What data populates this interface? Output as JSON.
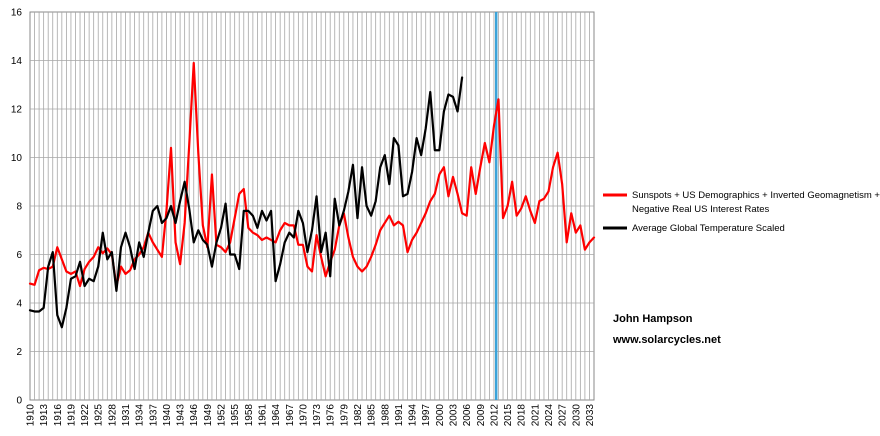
{
  "chart_data": {
    "type": "line",
    "title": "",
    "xlabel": "",
    "ylabel": "",
    "xlim": [
      1910,
      2034
    ],
    "ylim": [
      0,
      16
    ],
    "y_ticks": [
      0,
      2,
      4,
      6,
      8,
      10,
      12,
      14,
      16
    ],
    "x_tick_labels": [
      "1910",
      "1913",
      "1916",
      "1919",
      "1922",
      "1925",
      "1928",
      "1931",
      "1934",
      "1937",
      "1940",
      "1943",
      "1946",
      "1949",
      "1952",
      "1955",
      "1958",
      "1961",
      "1964",
      "1967",
      "1970",
      "1973",
      "1976",
      "1979",
      "1982",
      "1985",
      "1988",
      "1991",
      "1994",
      "1997",
      "2000",
      "2003",
      "2006",
      "2009",
      "2012",
      "2015",
      "2018",
      "2021",
      "2024",
      "2027",
      "2030",
      "2033"
    ],
    "grid": true,
    "legend_position": "right",
    "vertical_marker": {
      "x": 2012.5,
      "color": "#3aa3d9"
    },
    "series": [
      {
        "name": "Sunspots + US Demographics + Inverted Geomagnetism + Negative Real US Interest Rates",
        "color": "#ff0000",
        "x": [
          1910,
          1911,
          1912,
          1913,
          1914,
          1915,
          1916,
          1917,
          1918,
          1919,
          1920,
          1921,
          1922,
          1923,
          1924,
          1925,
          1926,
          1927,
          1928,
          1929,
          1930,
          1931,
          1932,
          1933,
          1934,
          1935,
          1936,
          1937,
          1938,
          1939,
          1940,
          1941,
          1942,
          1943,
          1944,
          1945,
          1946,
          1947,
          1948,
          1949,
          1950,
          1951,
          1952,
          1953,
          1954,
          1955,
          1956,
          1957,
          1958,
          1959,
          1960,
          1961,
          1962,
          1963,
          1964,
          1965,
          1966,
          1967,
          1968,
          1969,
          1970,
          1971,
          1972,
          1973,
          1974,
          1975,
          1976,
          1977,
          1978,
          1979,
          1980,
          1981,
          1982,
          1983,
          1984,
          1985,
          1986,
          1987,
          1988,
          1989,
          1990,
          1991,
          1992,
          1993,
          1994,
          1995,
          1996,
          1997,
          1998,
          1999,
          2000,
          2001,
          2002,
          2003,
          2004,
          2005,
          2006,
          2007,
          2008,
          2009,
          2010,
          2011,
          2012,
          2013,
          2014,
          2015,
          2016,
          2017,
          2018,
          2019,
          2020,
          2021,
          2022,
          2023,
          2024,
          2025,
          2026,
          2027,
          2028,
          2029,
          2030,
          2031,
          2032,
          2033,
          2034
        ],
        "values": [
          4.8,
          4.75,
          5.35,
          5.45,
          5.4,
          5.5,
          6.3,
          5.8,
          5.3,
          5.2,
          5.3,
          4.7,
          5.4,
          5.7,
          5.9,
          6.3,
          6.05,
          6.25,
          6.0,
          4.7,
          5.5,
          5.2,
          5.35,
          5.8,
          6.0,
          6.3,
          6.9,
          6.5,
          6.2,
          5.9,
          7.8,
          10.4,
          6.5,
          5.6,
          7.3,
          10.5,
          13.9,
          10.2,
          7.2,
          6.3,
          9.3,
          6.4,
          6.3,
          6.1,
          6.5,
          7.5,
          8.5,
          8.7,
          7.1,
          6.9,
          6.8,
          6.6,
          6.7,
          6.6,
          6.5,
          7.0,
          7.3,
          7.2,
          7.2,
          6.4,
          6.4,
          5.5,
          5.3,
          6.8,
          5.9,
          5.1,
          5.7,
          6.2,
          7.2,
          7.7,
          6.7,
          5.9,
          5.5,
          5.3,
          5.5,
          5.9,
          6.4,
          7.0,
          7.3,
          7.6,
          7.2,
          7.35,
          7.2,
          6.1,
          6.6,
          6.9,
          7.3,
          7.7,
          8.2,
          8.5,
          9.3,
          9.6,
          8.4,
          9.2,
          8.5,
          7.7,
          7.6,
          9.6,
          8.5,
          9.6,
          10.6,
          9.8,
          11.3,
          12.4,
          7.5,
          8.0,
          9.0,
          7.6,
          7.9,
          8.4,
          7.8,
          7.3,
          8.2,
          8.3,
          8.6,
          9.6,
          10.2,
          8.9,
          6.5,
          7.7,
          6.9,
          7.2,
          6.2,
          6.5,
          6.7
        ]
      },
      {
        "name": "Average Global Temperature Scaled",
        "color": "#000000",
        "x": [
          1910,
          1911,
          1912,
          1913,
          1914,
          1915,
          1916,
          1917,
          1918,
          1919,
          1920,
          1921,
          1922,
          1923,
          1924,
          1925,
          1926,
          1927,
          1928,
          1929,
          1930,
          1931,
          1932,
          1933,
          1934,
          1935,
          1936,
          1937,
          1938,
          1939,
          1940,
          1941,
          1942,
          1943,
          1944,
          1945,
          1946,
          1947,
          1948,
          1949,
          1950,
          1951,
          1952,
          1953,
          1954,
          1955,
          1956,
          1957,
          1958,
          1959,
          1960,
          1961,
          1962,
          1963,
          1964,
          1965,
          1966,
          1967,
          1968,
          1969,
          1970,
          1971,
          1972,
          1973,
          1974,
          1975,
          1976,
          1977,
          1978,
          1979,
          1980,
          1981,
          1982,
          1983,
          1984,
          1985,
          1986,
          1987,
          1988,
          1989,
          1990,
          1991,
          1992,
          1993,
          1994,
          1995,
          1996,
          1997,
          1998,
          1999,
          2000,
          2001,
          2002,
          2003,
          2004,
          2005
        ],
        "values": [
          3.7,
          3.65,
          3.65,
          3.8,
          5.5,
          6.1,
          3.5,
          3.0,
          3.8,
          5.0,
          5.1,
          5.7,
          4.7,
          5.0,
          4.9,
          5.5,
          6.9,
          5.8,
          6.1,
          4.5,
          6.3,
          6.9,
          6.3,
          5.4,
          6.5,
          5.9,
          6.9,
          7.8,
          8.0,
          7.3,
          7.5,
          8.0,
          7.3,
          8.2,
          9.0,
          7.9,
          6.5,
          7.0,
          6.6,
          6.4,
          5.5,
          6.5,
          7.1,
          8.1,
          6.0,
          6.0,
          5.4,
          7.8,
          7.8,
          7.6,
          7.1,
          7.8,
          7.4,
          7.8,
          4.9,
          5.6,
          6.5,
          6.9,
          6.7,
          7.8,
          7.3,
          6.1,
          7.0,
          8.4,
          6.1,
          6.9,
          5.1,
          8.3,
          7.2,
          7.8,
          8.6,
          9.7,
          7.5,
          9.6,
          8.0,
          7.6,
          8.2,
          9.6,
          10.1,
          8.9,
          10.8,
          10.5,
          8.4,
          8.5,
          9.4,
          10.8,
          10.1,
          11.2,
          12.7,
          10.3,
          10.3,
          11.9,
          12.6,
          12.5,
          11.9,
          13.3
        ]
      }
    ],
    "annotations": [
      "John Hampson",
      "www.solarcycles.net"
    ]
  }
}
